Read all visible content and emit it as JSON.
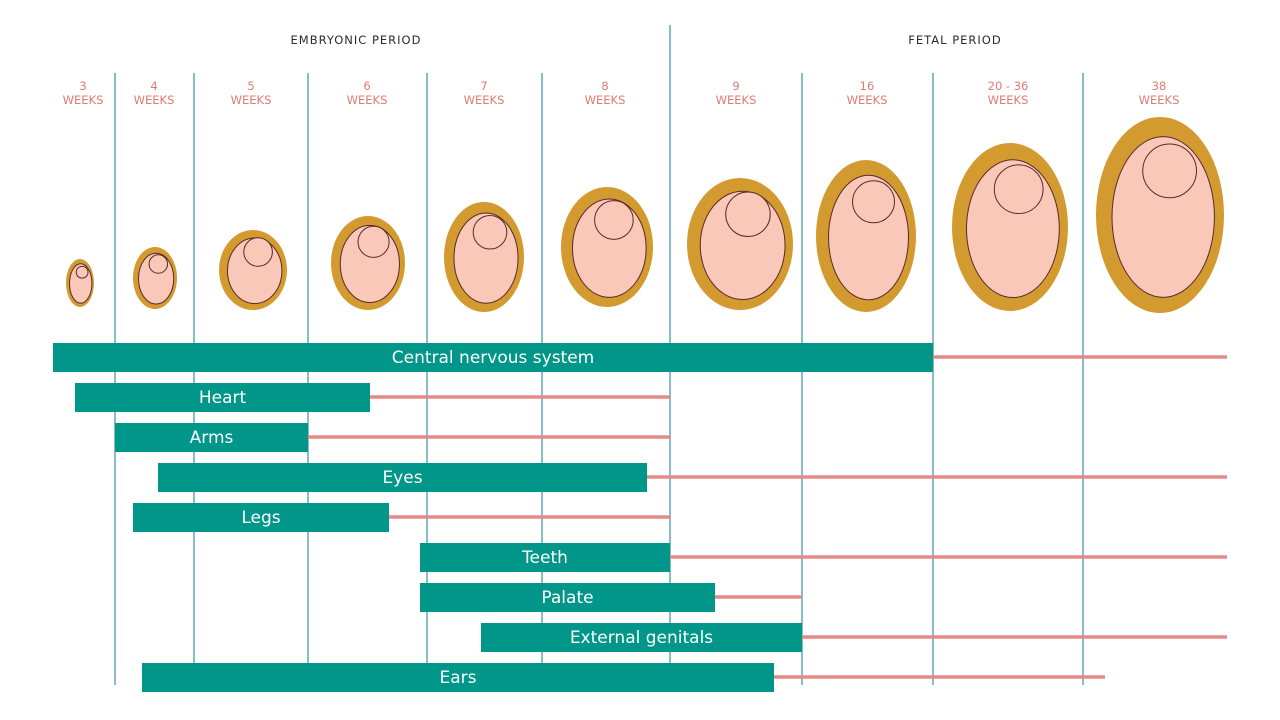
{
  "header": {
    "periods": [
      "EMBRYONIC PERIOD",
      "FETAL PERIOD"
    ]
  },
  "weeks": [
    {
      "number": "3",
      "unit": "WEEKS"
    },
    {
      "number": "4",
      "unit": "WEEKS"
    },
    {
      "number": "5",
      "unit": "WEEKS"
    },
    {
      "number": "6",
      "unit": "WEEKS"
    },
    {
      "number": "7",
      "unit": "WEEKS"
    },
    {
      "number": "8",
      "unit": "WEEKS"
    },
    {
      "number": "9",
      "unit": "WEEKS"
    },
    {
      "number": "16",
      "unit": "WEEKS"
    },
    {
      "number": "20 - 36",
      "unit": "WEEKS"
    },
    {
      "number": "38",
      "unit": "WEEKS"
    }
  ],
  "structures": [
    "Central nervous system",
    "Heart",
    "Arms",
    "Eyes",
    "Legs",
    "Teeth",
    "Palate",
    "External genitals",
    "Ears"
  ]
}
